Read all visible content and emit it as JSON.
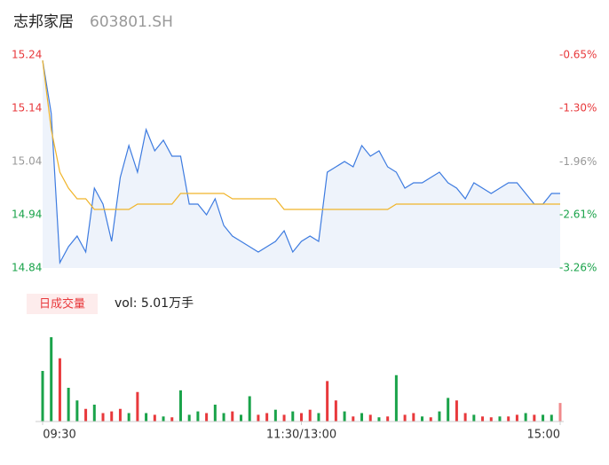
{
  "chart_data": [
    {
      "type": "line",
      "title": "志邦家居",
      "subtitle": "603801.SH",
      "x": [
        0,
        4,
        8,
        12,
        16,
        20,
        24,
        28,
        32,
        36,
        40,
        44,
        48,
        52,
        56,
        60,
        64,
        68,
        72,
        76,
        80,
        84,
        88,
        92,
        96,
        100,
        104,
        108,
        112,
        116,
        120,
        124,
        128,
        132,
        136,
        140,
        144,
        148,
        152,
        156,
        160,
        164,
        168,
        172,
        176,
        180,
        184,
        188,
        192,
        196,
        200,
        204,
        208,
        212,
        216,
        220,
        224,
        228,
        232,
        236,
        240
      ],
      "xlim": [
        0,
        240
      ],
      "ylim": [
        14.84,
        15.24
      ],
      "yticks": [
        15.24,
        15.14,
        15.04,
        14.94,
        14.84
      ],
      "ytick_colors": [
        "#e8393c",
        "#e8393c",
        "#999999",
        "#1aa34a",
        "#1aa34a"
      ],
      "y2lim": [
        -3.26,
        -0.65
      ],
      "y2ticks": [
        {
          "value": -0.65,
          "label": "-0.65%"
        },
        {
          "value": -1.3,
          "label": "-1.30%"
        },
        {
          "value": -1.96,
          "label": "-1.96%"
        },
        {
          "value": -2.61,
          "label": "-2.61%"
        },
        {
          "value": -3.26,
          "label": "-3.26%"
        }
      ],
      "y2tick_colors": [
        "#e8393c",
        "#e8393c",
        "#999999",
        "#1aa34a",
        "#1aa34a"
      ],
      "series": [
        {
          "color": "#3d7be0",
          "fill": "#eef3fb",
          "values": [
            15.23,
            15.13,
            14.85,
            14.88,
            14.9,
            14.87,
            14.99,
            14.96,
            14.89,
            15.01,
            15.07,
            15.02,
            15.1,
            15.06,
            15.08,
            15.05,
            15.05,
            14.96,
            14.96,
            14.94,
            14.97,
            14.92,
            14.9,
            14.89,
            14.88,
            14.87,
            14.88,
            14.89,
            14.91,
            14.87,
            14.89,
            14.9,
            14.89,
            15.02,
            15.03,
            15.04,
            15.03,
            15.07,
            15.05,
            15.06,
            15.03,
            15.02,
            14.99,
            15.0,
            15.0,
            15.01,
            15.02,
            15.0,
            14.99,
            14.97,
            15.0,
            14.99,
            14.98,
            14.99,
            15.0,
            15.0,
            14.98,
            14.96,
            14.96,
            14.98,
            14.98
          ]
        },
        {
          "color": "#f0b429",
          "values": [
            15.23,
            15.1,
            15.02,
            14.99,
            14.97,
            14.97,
            14.95,
            14.95,
            14.95,
            14.95,
            14.95,
            14.96,
            14.96,
            14.96,
            14.96,
            14.96,
            14.98,
            14.98,
            14.98,
            14.98,
            14.98,
            14.98,
            14.97,
            14.97,
            14.97,
            14.97,
            14.97,
            14.97,
            14.95,
            14.95,
            14.95,
            14.95,
            14.95,
            14.95,
            14.95,
            14.95,
            14.95,
            14.95,
            14.95,
            14.95,
            14.95,
            14.96,
            14.96,
            14.96,
            14.96,
            14.96,
            14.96,
            14.96,
            14.96,
            14.96,
            14.96,
            14.96,
            14.96,
            14.96,
            14.96,
            14.96,
            14.96,
            14.96,
            14.96,
            14.96,
            14.96
          ]
        }
      ]
    },
    {
      "type": "bar",
      "label": "日成交量",
      "annotation": "vol: 5.01万手",
      "x": [
        0,
        4,
        8,
        12,
        16,
        20,
        24,
        28,
        32,
        36,
        40,
        44,
        48,
        52,
        56,
        60,
        64,
        68,
        72,
        76,
        80,
        84,
        88,
        92,
        96,
        100,
        104,
        108,
        112,
        116,
        120,
        124,
        128,
        132,
        136,
        140,
        144,
        148,
        152,
        156,
        160,
        164,
        168,
        172,
        176,
        180,
        184,
        188,
        192,
        196,
        200,
        204,
        208,
        212,
        216,
        220,
        224,
        228,
        232,
        236,
        240
      ],
      "xlim": [
        0,
        240
      ],
      "xticks": [
        {
          "value": 0,
          "label": "09:30"
        },
        {
          "value": 120,
          "label": "11:30/13:00"
        },
        {
          "value": 240,
          "label": "15:00"
        }
      ],
      "ylim": [
        0,
        100
      ],
      "values": [
        60,
        100,
        75,
        40,
        25,
        15,
        20,
        10,
        12,
        15,
        10,
        35,
        10,
        8,
        6,
        5,
        37,
        8,
        12,
        10,
        20,
        10,
        12,
        8,
        30,
        8,
        10,
        14,
        8,
        12,
        10,
        14,
        10,
        48,
        25,
        12,
        6,
        10,
        8,
        5,
        6,
        55,
        8,
        10,
        6,
        5,
        12,
        28,
        25,
        10,
        8,
        6,
        5,
        6,
        6,
        8,
        10,
        8,
        8,
        8,
        22
      ],
      "colors": [
        "#1aa34a",
        "#1aa34a",
        "#e8393c",
        "#1aa34a",
        "#1aa34a",
        "#e8393c",
        "#1aa34a",
        "#e8393c",
        "#e8393c",
        "#e8393c",
        "#1aa34a",
        "#e8393c",
        "#1aa34a",
        "#e8393c",
        "#1aa34a",
        "#e8393c",
        "#1aa34a",
        "#1aa34a",
        "#1aa34a",
        "#e8393c",
        "#1aa34a",
        "#1aa34a",
        "#e8393c",
        "#1aa34a",
        "#1aa34a",
        "#e8393c",
        "#e8393c",
        "#1aa34a",
        "#e8393c",
        "#1aa34a",
        "#e8393c",
        "#e8393c",
        "#1aa34a",
        "#e8393c",
        "#e8393c",
        "#1aa34a",
        "#e8393c",
        "#1aa34a",
        "#e8393c",
        "#1aa34a",
        "#e8393c",
        "#1aa34a",
        "#e8393c",
        "#e8393c",
        "#1aa34a",
        "#e8393c",
        "#1aa34a",
        "#1aa34a",
        "#e8393c",
        "#e8393c",
        "#1aa34a",
        "#e8393c",
        "#e8393c",
        "#1aa34a",
        "#e8393c",
        "#e8393c",
        "#1aa34a",
        "#e8393c",
        "#1aa34a",
        "#1aa34a",
        "#f08a8c"
      ]
    }
  ]
}
